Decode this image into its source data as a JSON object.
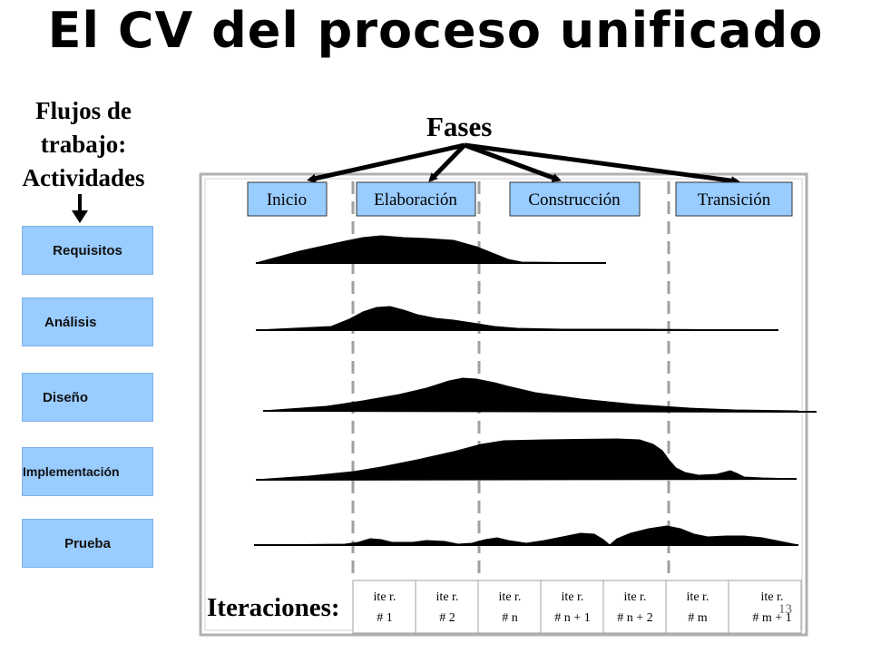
{
  "title": "El CV del proceso unificado",
  "workflows_heading": [
    "Flujos de",
    "trabajo:",
    "Actividades"
  ],
  "workflows": [
    "Requisitos",
    "Análisis",
    "Diseño",
    "Implementación",
    "Prueba"
  ],
  "phases_heading": "Fases",
  "phases": [
    "Inicio",
    "Elaboración",
    "Construcción",
    "Transición"
  ],
  "iterations_label": "Iteraciones:",
  "iterations": [
    {
      "top": "ite r.",
      "bottom": "# 1"
    },
    {
      "top": "ite r.",
      "bottom": "# 2"
    },
    {
      "top": "ite r.",
      "bottom": "# n"
    },
    {
      "top": "ite r.",
      "bottom": "# n + 1"
    },
    {
      "top": "ite r.",
      "bottom": "# n + 2"
    },
    {
      "top": "ite r.",
      "bottom": "# m"
    },
    {
      "top": "ite r.",
      "bottom": "# m + 1"
    }
  ],
  "page_number": "13",
  "colors": {
    "box_fill": "#99ccff",
    "panel_fill": "#ffffff",
    "curve_fill": "#000000"
  }
}
